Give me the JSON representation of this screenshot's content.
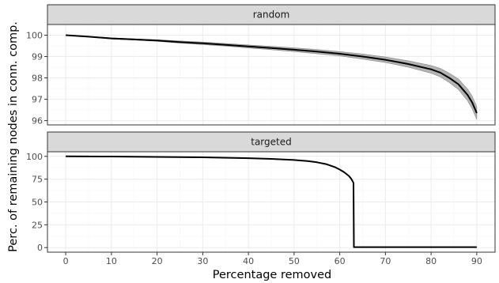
{
  "chart_data": {
    "type": "line",
    "xlabel": "Percentage removed",
    "ylabel": "Perc. of remaining nodes in conn. comp.",
    "x_ticks": [
      0,
      10,
      20,
      30,
      40,
      50,
      60,
      70,
      80,
      90
    ],
    "xlim": [
      -4,
      94
    ],
    "grid": true,
    "panels": [
      {
        "name": "random",
        "ylim": [
          95.8,
          100.5
        ],
        "y_ticks": [
          96,
          97,
          98,
          99,
          100
        ],
        "has_ribbon": true,
        "x": [
          0,
          5,
          10,
          15,
          20,
          25,
          30,
          35,
          40,
          45,
          50,
          55,
          60,
          65,
          70,
          75,
          80,
          82,
          84,
          86,
          88,
          89,
          90
        ],
        "y": [
          100,
          99.93,
          99.85,
          99.8,
          99.75,
          99.68,
          99.62,
          99.55,
          99.47,
          99.4,
          99.32,
          99.23,
          99.13,
          99.0,
          98.85,
          98.65,
          98.4,
          98.25,
          98.0,
          97.7,
          97.2,
          96.85,
          96.35
        ],
        "lower": [
          100,
          99.91,
          99.82,
          99.77,
          99.71,
          99.63,
          99.56,
          99.49,
          99.4,
          99.32,
          99.23,
          99.13,
          99.03,
          98.88,
          98.72,
          98.5,
          98.22,
          98.05,
          97.78,
          97.45,
          96.92,
          96.55,
          96.05
        ],
        "upper": [
          100,
          99.95,
          99.88,
          99.83,
          99.79,
          99.73,
          99.68,
          99.61,
          99.54,
          99.48,
          99.41,
          99.33,
          99.23,
          99.12,
          98.98,
          98.8,
          98.58,
          98.45,
          98.22,
          97.95,
          97.48,
          97.15,
          96.65
        ]
      },
      {
        "name": "targeted",
        "ylim": [
          -5,
          105
        ],
        "y_ticks": [
          0,
          25,
          50,
          75,
          100
        ],
        "has_ribbon": false,
        "x": [
          0,
          10,
          20,
          30,
          40,
          45,
          50,
          53,
          55,
          57,
          59,
          60,
          61,
          62,
          62.5,
          63,
          63.1,
          70,
          80,
          90
        ],
        "y": [
          100,
          99.8,
          99.4,
          98.9,
          98.0,
          97.2,
          96.0,
          94.8,
          93.5,
          91.5,
          88.0,
          85.5,
          82.5,
          78.5,
          75.5,
          71.0,
          0.5,
          0.5,
          0.5,
          0.5
        ]
      }
    ]
  }
}
